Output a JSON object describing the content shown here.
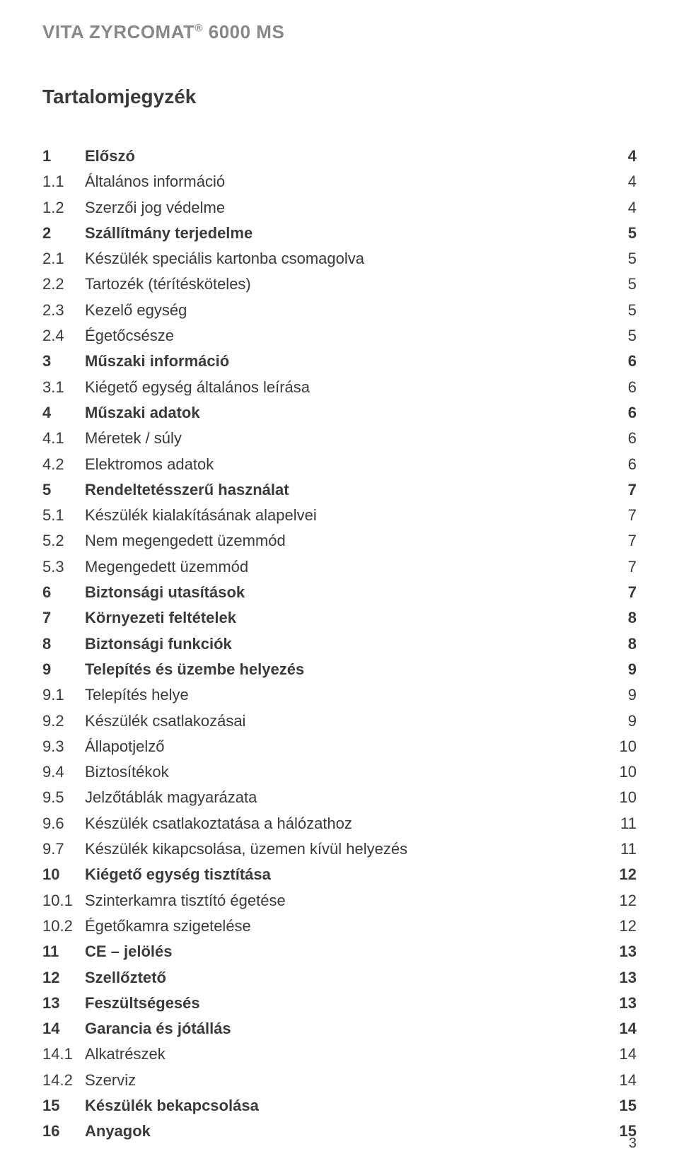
{
  "header": {
    "brand_prefix": "VITA ZYRCOMAT",
    "brand_reg": "®",
    "brand_suffix": " 6000 MS"
  },
  "toc_title": "Tartalomjegyzék",
  "page_number": "3",
  "entries": [
    {
      "num": "1",
      "label": "Előszó",
      "page": "4",
      "bold": true
    },
    {
      "num": "1.1",
      "label": "Általános információ",
      "page": "4",
      "bold": false
    },
    {
      "num": "1.2",
      "label": "Szerzői jog védelme",
      "page": "4",
      "bold": false
    },
    {
      "num": "2",
      "label": "Szállítmány terjedelme",
      "page": "5",
      "bold": true
    },
    {
      "num": "2.1",
      "label": "Készülék speciális kartonba csomagolva",
      "page": "5",
      "bold": false
    },
    {
      "num": "2.2",
      "label": "Tartozék (térítésköteles)",
      "page": "5",
      "bold": false
    },
    {
      "num": "2.3",
      "label": "Kezelő egység",
      "page": "5",
      "bold": false
    },
    {
      "num": "2.4",
      "label": "Égetőcsésze",
      "page": "5",
      "bold": false
    },
    {
      "num": "3",
      "label": "Műszaki információ",
      "page": "6",
      "bold": true
    },
    {
      "num": "3.1",
      "label": "Kiégető egység általános leírása",
      "page": "6",
      "bold": false
    },
    {
      "num": "4",
      "label": "Műszaki adatok",
      "page": "6",
      "bold": true
    },
    {
      "num": "4.1",
      "label": "Méretek / súly",
      "page": "6",
      "bold": false
    },
    {
      "num": "4.2",
      "label": "Elektromos adatok",
      "page": "6",
      "bold": false
    },
    {
      "num": "5",
      "label": "Rendeltetésszerű használat",
      "page": "7",
      "bold": true
    },
    {
      "num": "5.1",
      "label": "Készülék kialakításának alapelvei",
      "page": "7",
      "bold": false
    },
    {
      "num": "5.2",
      "label": "Nem megengedett üzemmód",
      "page": "7",
      "bold": false
    },
    {
      "num": "5.3",
      "label": "Megengedett üzemmód",
      "page": "7",
      "bold": false
    },
    {
      "num": "6",
      "label": "Biztonsági utasítások",
      "page": "7",
      "bold": true
    },
    {
      "num": "7",
      "label": "Környezeti feltételek",
      "page": "8",
      "bold": true
    },
    {
      "num": "8",
      "label": "Biztonsági funkciók",
      "page": "8",
      "bold": true
    },
    {
      "num": "9",
      "label": "Telepítés és üzembe helyezés",
      "page": "9",
      "bold": true
    },
    {
      "num": "9.1",
      "label": "Telepítés helye",
      "page": "9",
      "bold": false
    },
    {
      "num": "9.2",
      "label": "Készülék csatlakozásai",
      "page": "9",
      "bold": false
    },
    {
      "num": "9.3",
      "label": "Állapotjelző",
      "page": "10",
      "bold": false
    },
    {
      "num": "9.4",
      "label": "Biztosítékok",
      "page": "10",
      "bold": false
    },
    {
      "num": "9.5",
      "label": "Jelzőtáblák magyarázata",
      "page": "10",
      "bold": false
    },
    {
      "num": "9.6",
      "label": "Készülék csatlakoztatása a hálózathoz",
      "page": "11",
      "bold": false
    },
    {
      "num": "9.7",
      "label": "Készülék kikapcsolása, üzemen kívül helyezés",
      "page": "11",
      "bold": false
    },
    {
      "num": "10",
      "label": "Kiégető egység tisztítása",
      "page": "12",
      "bold": true
    },
    {
      "num": "10.1",
      "label": "Szinterkamra tisztító égetése",
      "page": "12",
      "bold": false
    },
    {
      "num": "10.2",
      "label": "Égetőkamra szigetelése",
      "page": "12",
      "bold": false
    },
    {
      "num": "11",
      "label": "CE – jelölés",
      "page": "13",
      "bold": true
    },
    {
      "num": "12",
      "label": "Szellőztető",
      "page": "13",
      "bold": true
    },
    {
      "num": "13",
      "label": "Feszültségesés",
      "page": "13",
      "bold": true
    },
    {
      "num": "14",
      "label": "Garancia és jótállás",
      "page": "14",
      "bold": true
    },
    {
      "num": "14.1",
      "label": "Alkatrészek",
      "page": "14",
      "bold": false
    },
    {
      "num": "14.2",
      "label": "Szerviz",
      "page": "14",
      "bold": false
    },
    {
      "num": "15",
      "label": "Készülék bekapcsolása",
      "page": "15",
      "bold": true
    },
    {
      "num": "16",
      "label": "Anyagok",
      "page": "15",
      "bold": true
    }
  ]
}
